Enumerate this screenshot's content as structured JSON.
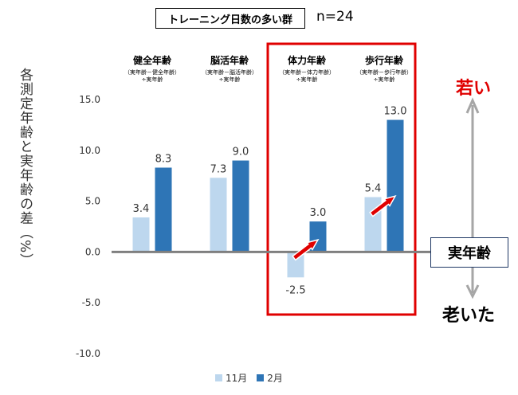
{
  "header": {
    "title": "トレーニング日数の多い群",
    "n_label": "n=24"
  },
  "chart_data": {
    "type": "bar",
    "ylabel": "各測定年齢と実年齢の差（%）",
    "ylim": [
      -10,
      15
    ],
    "yticks": [
      "15.0",
      "10.0",
      "5.0",
      "0.0",
      "-5.0",
      "-10.0"
    ],
    "grid": false,
    "legend_position": "bottom",
    "categories": [
      {
        "name": "健全年齢",
        "formula": [
          "（実年齢－健全年齢）",
          "÷実年齢"
        ]
      },
      {
        "name": "脳活年齢",
        "formula": [
          "（実年齢－脳活年齢）",
          "÷実年齢"
        ]
      },
      {
        "name": "体力年齢",
        "formula": [
          "（実年齢－体力年齢）",
          "÷実年齢"
        ]
      },
      {
        "name": "歩行年齢",
        "formula": [
          "（実年齢－歩行年齢）",
          "÷実年齢"
        ]
      }
    ],
    "series": [
      {
        "name": "11月",
        "color": "#bdd7ee",
        "values": [
          3.4,
          7.3,
          -2.5,
          5.4
        ],
        "labels": [
          "3.4",
          "7.3",
          "-2.5",
          "5.4"
        ]
      },
      {
        "name": "2月",
        "color": "#2e75b6",
        "values": [
          8.3,
          9.0,
          3.0,
          13.0
        ],
        "labels": [
          "8.3",
          "9.0",
          "3.0",
          "13.0"
        ]
      }
    ],
    "highlight_categories": [
      2,
      3
    ],
    "highlight_color": "#e00000"
  },
  "annotations": {
    "young": "若い",
    "old": "老いた",
    "actual_age": "実年齢"
  }
}
